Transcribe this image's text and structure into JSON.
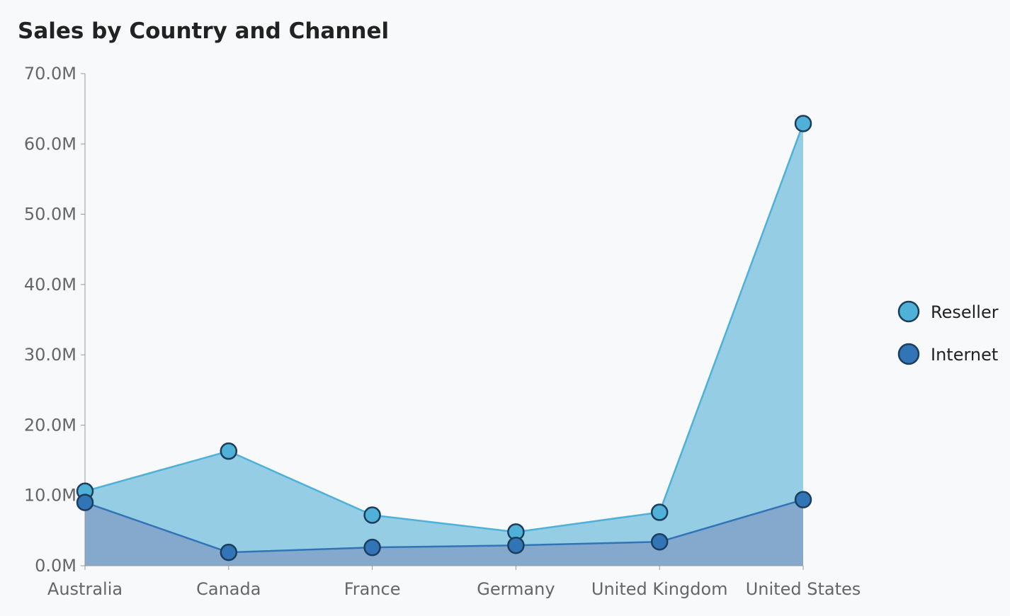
{
  "chart_data": {
    "type": "area",
    "title": "Sales by Country and Channel",
    "xlabel": "",
    "ylabel": "",
    "categories": [
      "Australia",
      "Canada",
      "France",
      "Germany",
      "United Kingdom",
      "United States"
    ],
    "ylim": [
      0,
      70000000
    ],
    "yticks": [
      0,
      10000000,
      20000000,
      30000000,
      40000000,
      50000000,
      60000000,
      70000000
    ],
    "ytick_labels": [
      "0.0M",
      "10.0M",
      "20.0M",
      "30.0M",
      "40.0M",
      "50.0M",
      "60.0M",
      "70.0M"
    ],
    "stacked": false,
    "grid": false,
    "legend_position": "right",
    "series": [
      {
        "name": "Reseller",
        "values": [
          10600000,
          16300000,
          7200000,
          4800000,
          7600000,
          62900000
        ],
        "color": "#4fb0d8",
        "fill": "#94cde4"
      },
      {
        "name": "Internet",
        "values": [
          9000000,
          1900000,
          2600000,
          2900000,
          3400000,
          9400000
        ],
        "color": "#3175b6",
        "fill": "#84a9cd"
      }
    ],
    "marker_stroke": "#1d3d5c"
  }
}
